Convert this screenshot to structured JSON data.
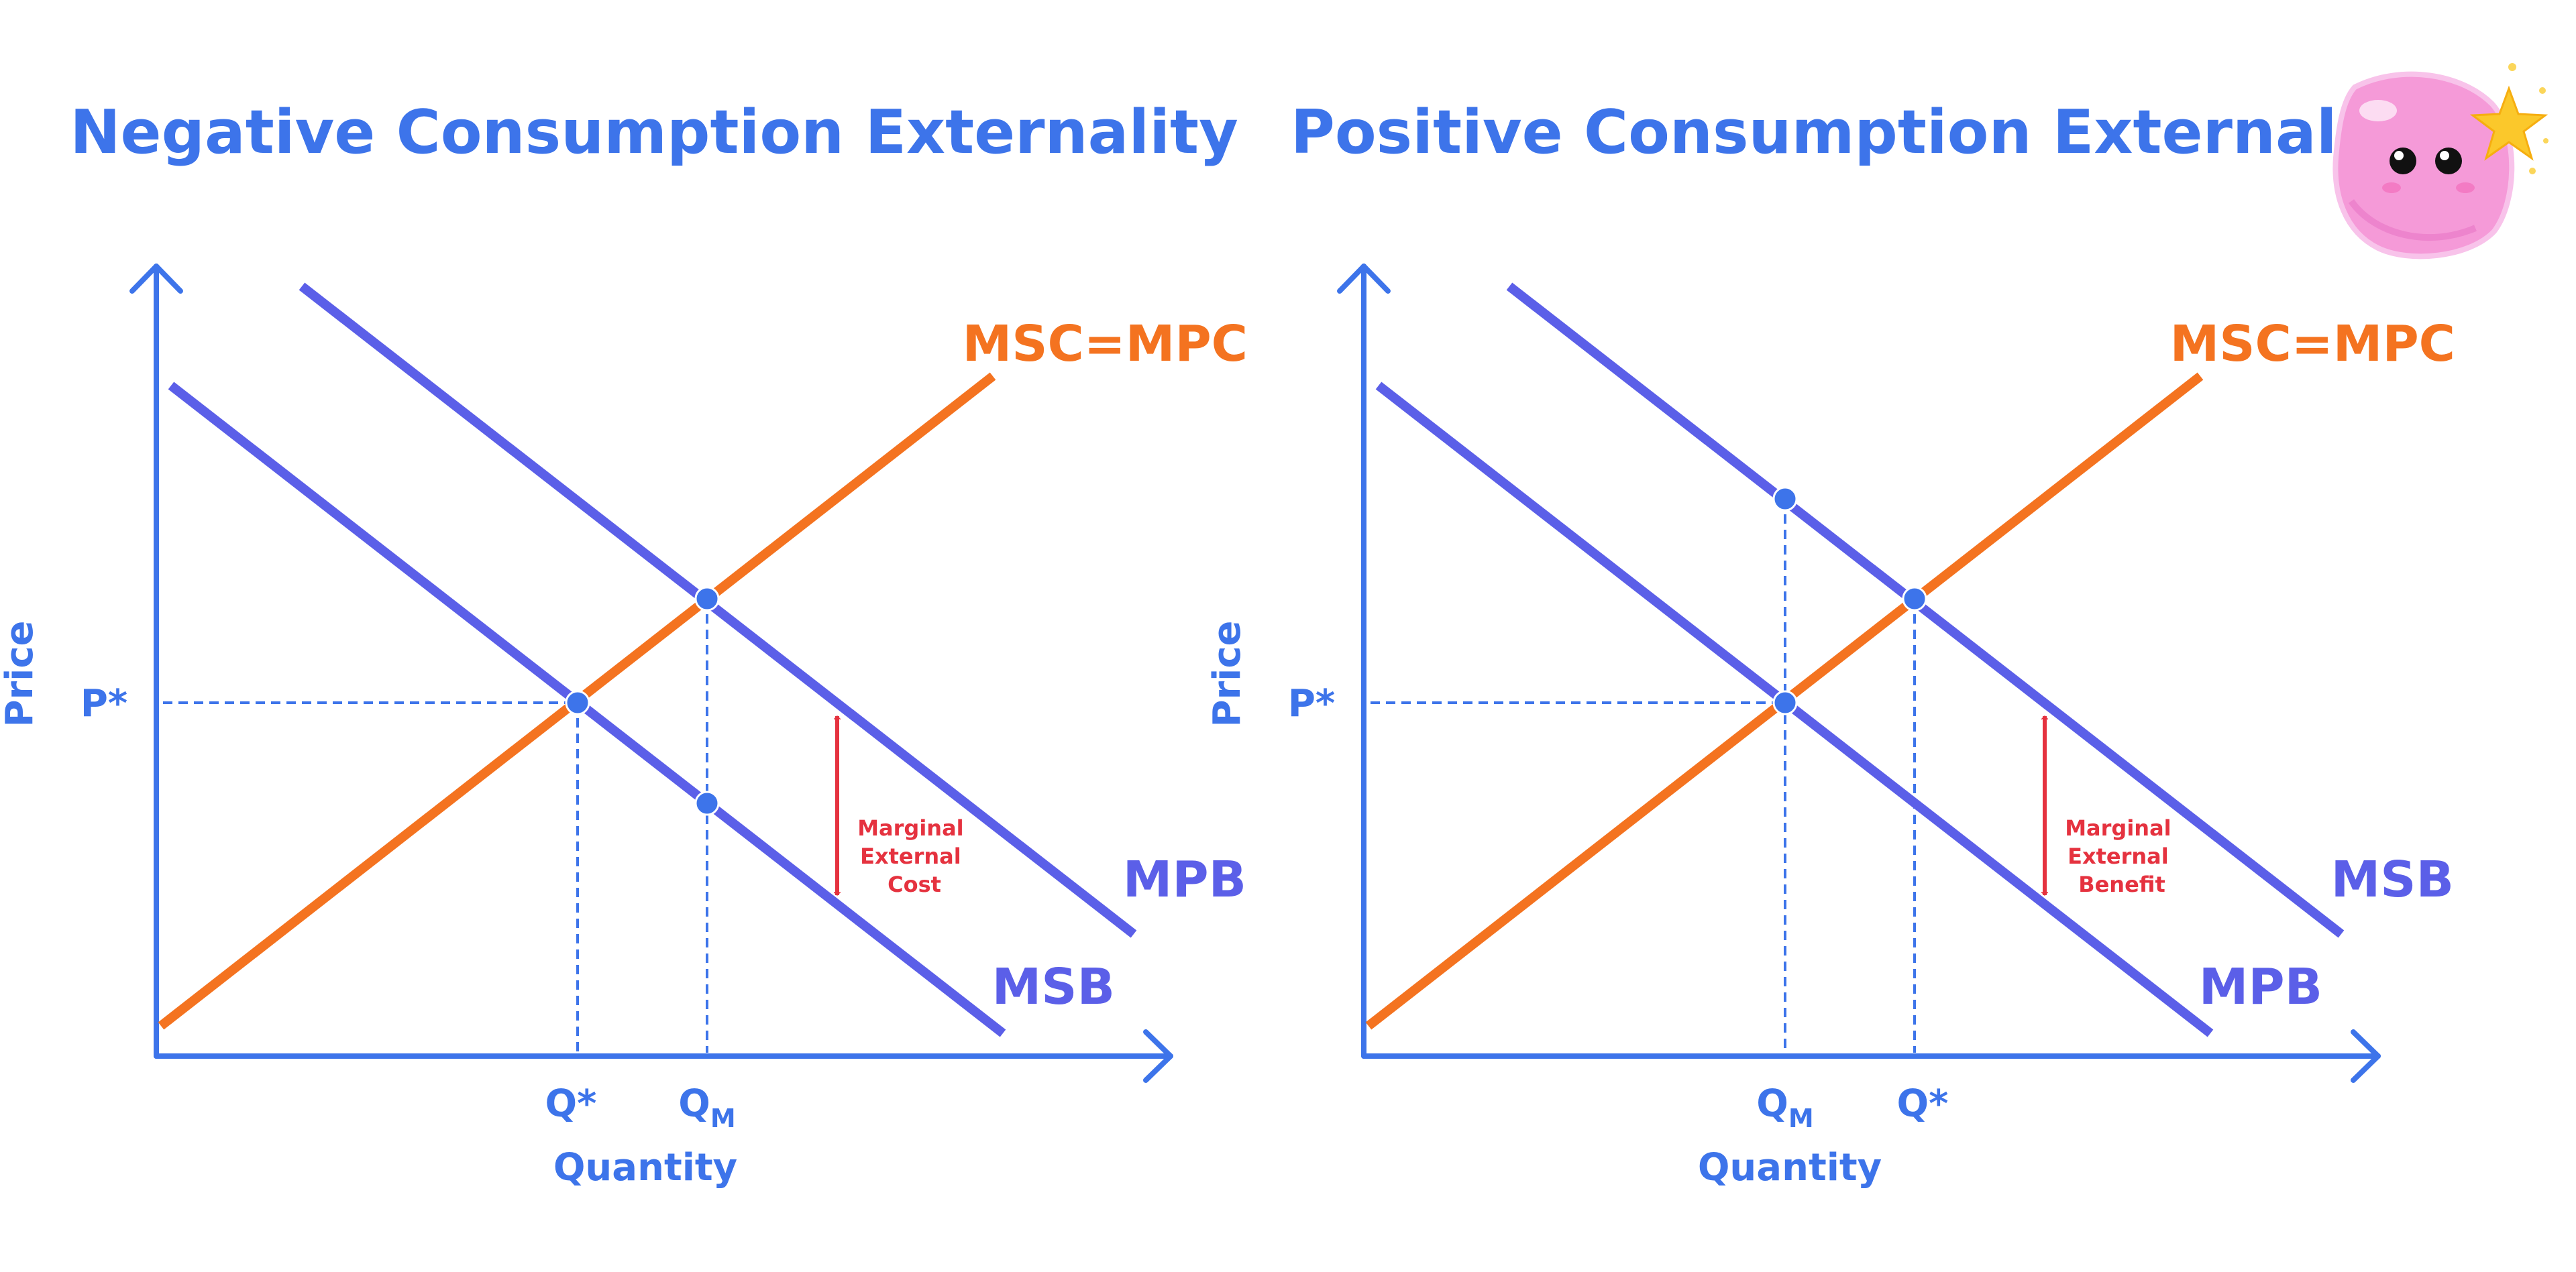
{
  "colors": {
    "axis": "#3d74ea",
    "supply": "#f47320",
    "demand": "#5b5fe8",
    "arrow": "#e5323f",
    "point": "#3d74ea"
  },
  "decoration": {
    "mascot": "pink-blob-mascot-with-star"
  },
  "diagrams": [
    {
      "title": "Negative Consumption Externality",
      "y_axis_label": "Price",
      "x_axis_label": "Quantity",
      "price_label": "P*",
      "quantity_labels": [
        {
          "main": "Q*",
          "sub": ""
        },
        {
          "main": "Q",
          "sub": "M"
        }
      ],
      "curves": [
        {
          "label": "MSC=MPC",
          "role": "supply"
        },
        {
          "label": "MPB",
          "role": "upper-demand"
        },
        {
          "label": "MSB",
          "role": "lower-demand"
        }
      ],
      "annotation": [
        "Marginal",
        "External",
        "Cost"
      ]
    },
    {
      "title": "Positive Consumption Externality",
      "y_axis_label": "Price",
      "x_axis_label": "Quantity",
      "price_label": "P*",
      "quantity_labels": [
        {
          "main": "Q",
          "sub": "M"
        },
        {
          "main": "Q*",
          "sub": ""
        }
      ],
      "curves": [
        {
          "label": "MSC=MPC",
          "role": "supply"
        },
        {
          "label": "MSB",
          "role": "upper-demand"
        },
        {
          "label": "MPB",
          "role": "lower-demand"
        }
      ],
      "annotation": [
        "Marginal",
        "External",
        "Benefit"
      ]
    }
  ]
}
